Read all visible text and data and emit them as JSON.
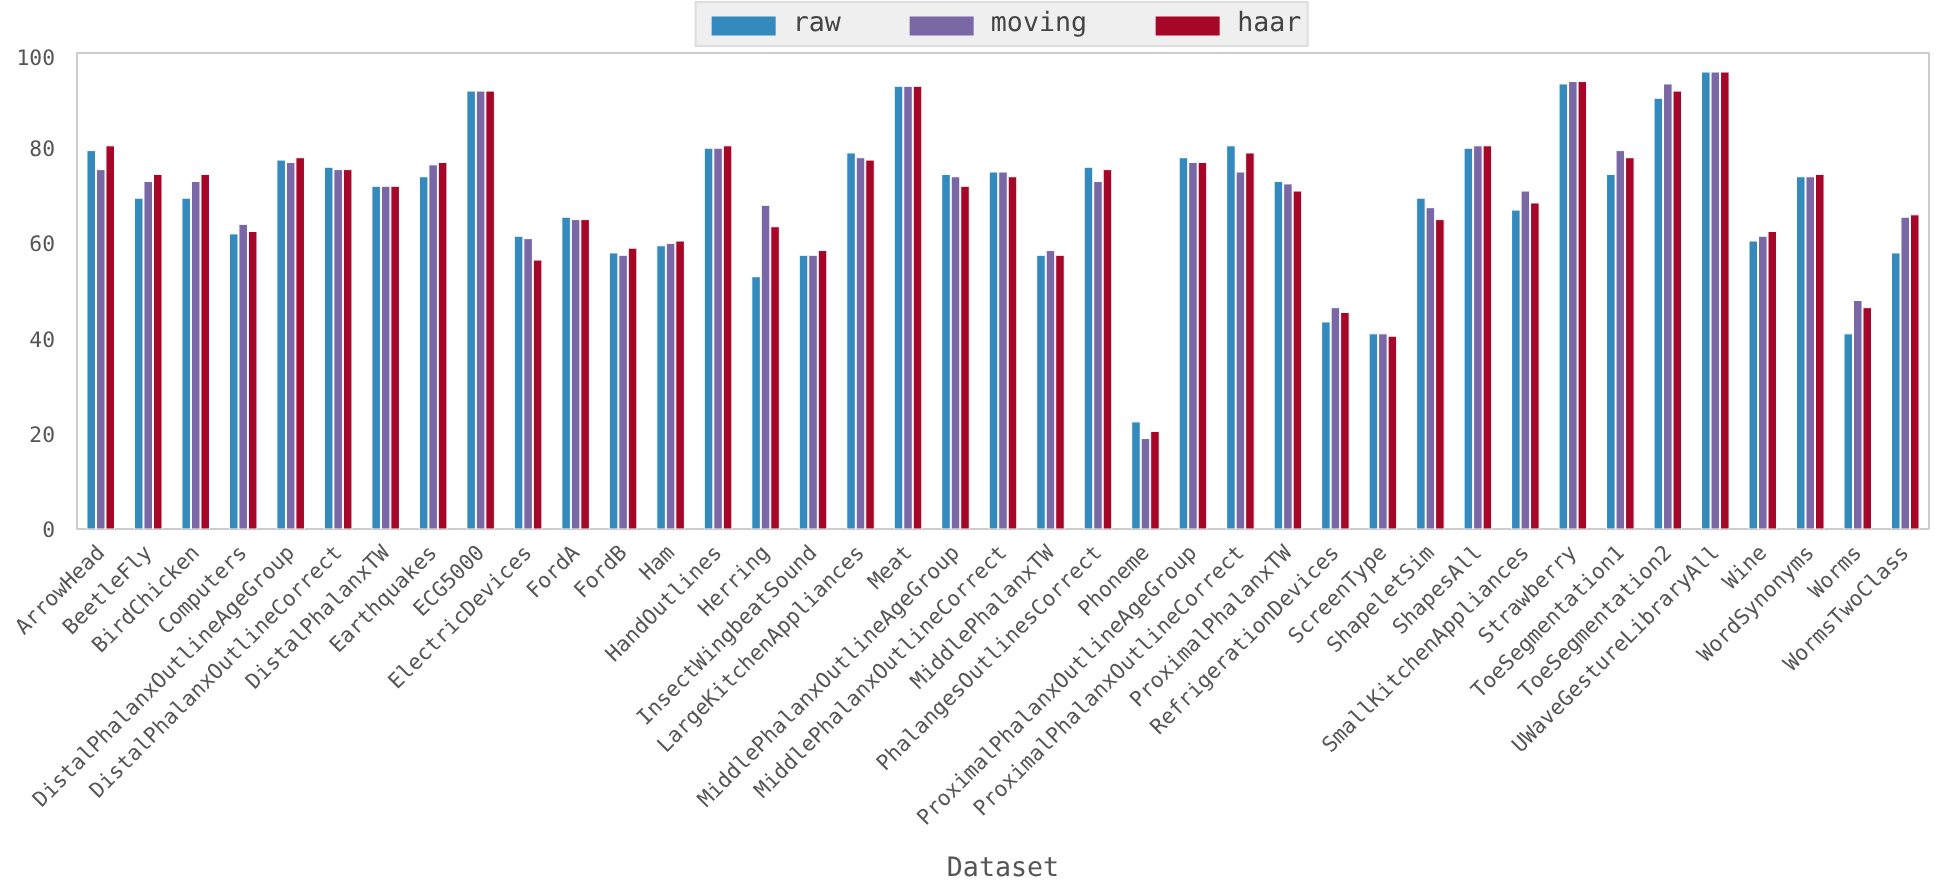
{
  "chart_data": {
    "type": "bar",
    "xlabel": "Dataset",
    "categories": [
      "ArrowHead",
      "BeetleFly",
      "BirdChicken",
      "Computers",
      "DistalPhalanxOutlineAgeGroup",
      "DistalPhalanxOutlineCorrect",
      "DistalPhalanxTW",
      "Earthquakes",
      "ECG5000",
      "ElectricDevices",
      "FordA",
      "FordB",
      "Ham",
      "HandOutlines",
      "Herring",
      "InsectWingbeatSound",
      "LargeKitchenAppliances",
      "Meat",
      "MiddlePhalanxOutlineAgeGroup",
      "MiddlePhalanxOutlineCorrect",
      "MiddlePhalanxTW",
      "PhalangesOutlinesCorrect",
      "Phoneme",
      "ProximalPhalanxOutlineAgeGroup",
      "ProximalPhalanxOutlineCorrect",
      "ProximalPhalanxTW",
      "RefrigerationDevices",
      "ScreenType",
      "ShapeletSim",
      "ShapesAll",
      "SmallKitchenAppliances",
      "Strawberry",
      "ToeSegmentation1",
      "ToeSegmentation2",
      "UWaveGestureLibraryAll",
      "Wine",
      "WordSynonyms",
      "Worms",
      "WormsTwoClass"
    ],
    "series": [
      {
        "name": "raw",
        "color": "#348abd",
        "values": [
          79.5,
          69.5,
          69.5,
          62,
          77.5,
          76,
          72,
          74,
          92,
          61.5,
          65.5,
          58,
          59.5,
          80,
          53,
          57.5,
          79,
          93,
          74.5,
          75,
          57.5,
          76,
          22.5,
          78,
          80.5,
          73,
          43.5,
          41,
          69.5,
          80,
          67,
          93.5,
          74.5,
          90.5,
          96,
          60.5,
          74,
          41,
          58
        ]
      },
      {
        "name": "moving",
        "color": "#7a68a6",
        "values": [
          75.5,
          73,
          73,
          64,
          77,
          75.5,
          72,
          76.5,
          92,
          61,
          65,
          57.5,
          60,
          80,
          68,
          57.5,
          78,
          93,
          74,
          75,
          58.5,
          73,
          19,
          77,
          75,
          72.5,
          46.5,
          41,
          67.5,
          80.5,
          71,
          94,
          79.5,
          93.5,
          96,
          61.5,
          74,
          48,
          65.5
        ]
      },
      {
        "name": "haar",
        "color": "#a60628",
        "values": [
          80.5,
          74.5,
          74.5,
          62.5,
          78,
          75.5,
          72,
          77,
          92,
          56.5,
          65,
          59,
          60.5,
          80.5,
          63.5,
          58.5,
          77.5,
          93,
          72,
          74,
          57.5,
          75.5,
          20.5,
          77,
          79,
          71,
          45.5,
          40.5,
          65,
          80.5,
          68.5,
          94,
          78,
          92,
          96,
          62.5,
          74.5,
          46.5,
          66
        ]
      }
    ],
    "ylim": [
      0,
      100
    ],
    "yticks": [
      0,
      20,
      40,
      60,
      80,
      100
    ],
    "grid": false,
    "legend": "top"
  }
}
